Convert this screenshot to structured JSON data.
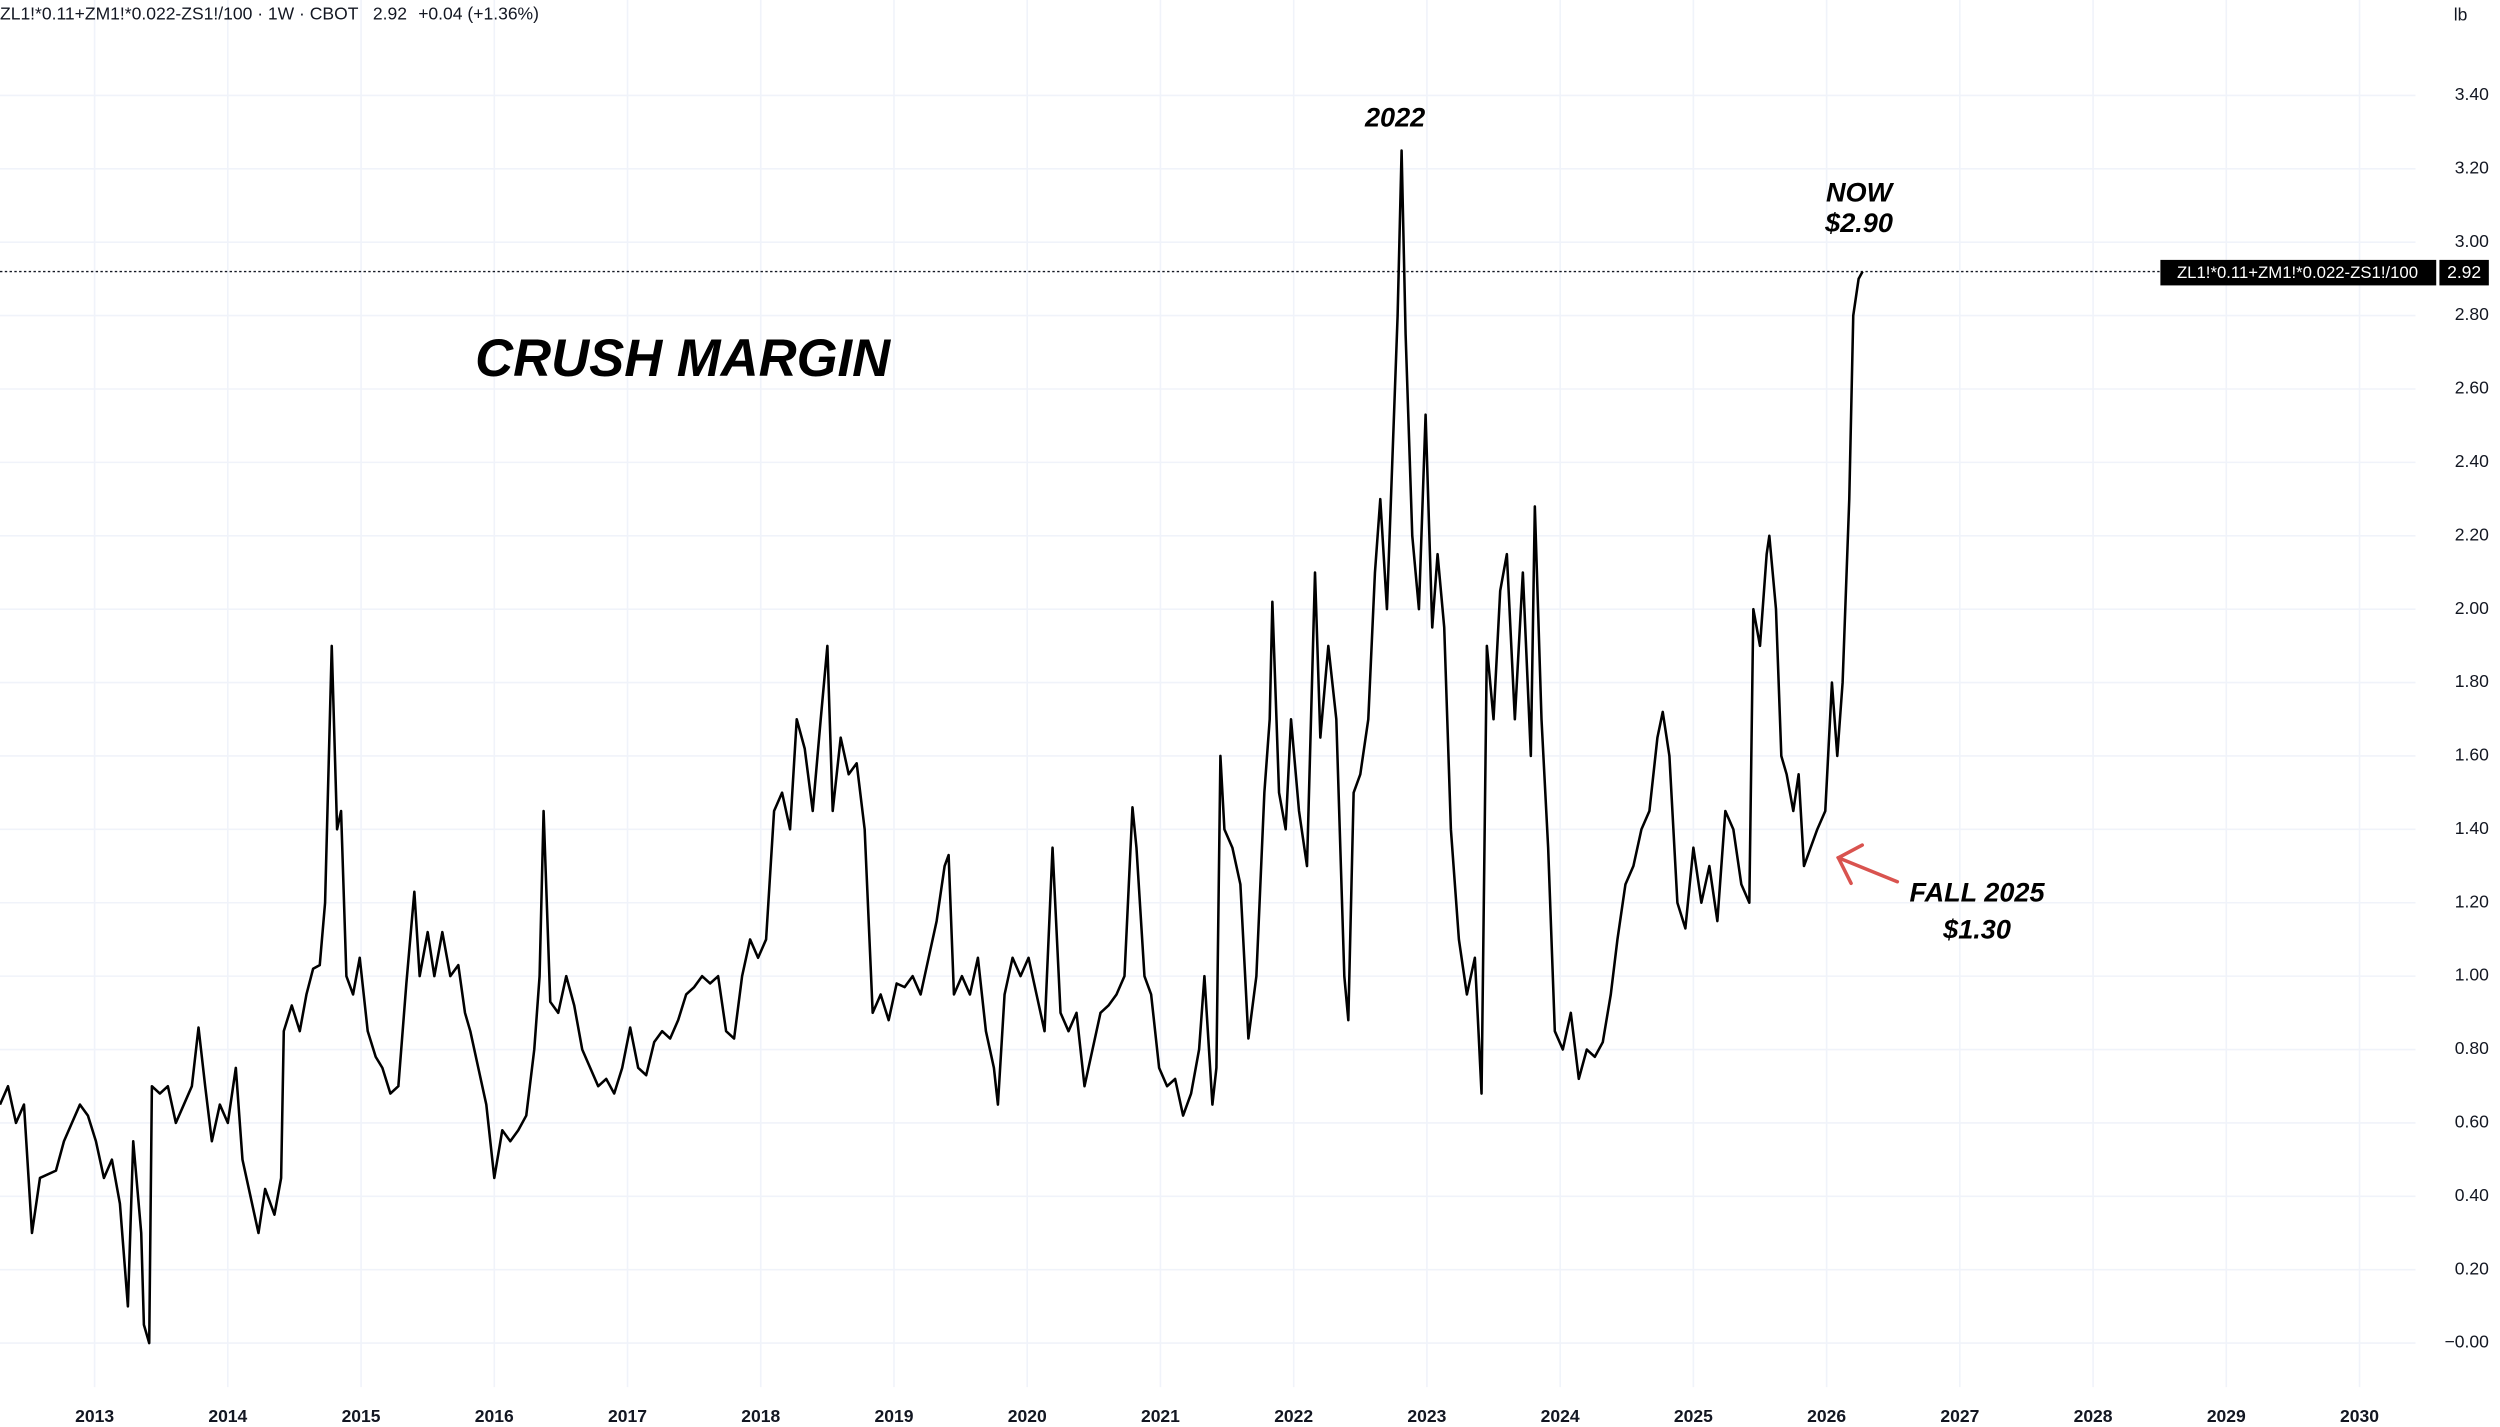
{
  "chart_data": {
    "type": "line",
    "legend_suffix": "· 1W · CBOT",
    "last": 2.92,
    "change": "+0.04",
    "change_pct": "(+1.36%)",
    "unit": "lb",
    "title": "CRUSH MARGIN",
    "annotations": [
      "2022",
      "NOW",
      "$2.90",
      "FALL 2025",
      "$1.30"
    ],
    "xlim": [
      2012.29,
      2030.42
    ],
    "xticks": [
      2013,
      2014,
      2015,
      2016,
      2017,
      2018,
      2019,
      2020,
      2021,
      2022,
      2023,
      2024,
      2025,
      2026,
      2027,
      2028,
      2029,
      2030
    ],
    "ylim": [
      -0.12,
      3.66
    ],
    "yticks": [
      {
        "value": 0,
        "label": "−0.00"
      },
      {
        "value": 0.2,
        "label": "0.20"
      },
      {
        "value": 0.4,
        "label": "0.40"
      },
      {
        "value": 0.6,
        "label": "0.60"
      },
      {
        "value": 0.8,
        "label": "0.80"
      },
      {
        "value": 1.0,
        "label": "1.00"
      },
      {
        "value": 1.2,
        "label": "1.20"
      },
      {
        "value": 1.4,
        "label": "1.40"
      },
      {
        "value": 1.6,
        "label": "1.60"
      },
      {
        "value": 1.8,
        "label": "1.80"
      },
      {
        "value": 2.0,
        "label": "2.00"
      },
      {
        "value": 2.2,
        "label": "2.20"
      },
      {
        "value": 2.4,
        "label": "2.40"
      },
      {
        "value": 2.6,
        "label": "2.60"
      },
      {
        "value": 2.8,
        "label": "2.80"
      },
      {
        "value": 3.0,
        "label": "3.00"
      },
      {
        "value": 3.2,
        "label": "3.20"
      },
      {
        "value": 3.4,
        "label": "3.40"
      }
    ],
    "grid": true,
    "x": [
      2012.29,
      2012.35,
      2012.41,
      2012.47,
      2012.53,
      2012.59,
      2012.71,
      2012.77,
      2012.83,
      2012.89,
      2012.95,
      2013.01,
      2013.07,
      2013.13,
      2013.19,
      2013.25,
      2013.29,
      2013.35,
      2013.37,
      2013.41,
      2013.43,
      2013.49,
      2013.55,
      2013.61,
      2013.67,
      2013.73,
      2013.78,
      2013.83,
      2013.88,
      2013.94,
      2014.0,
      2014.06,
      2014.11,
      2014.17,
      2014.23,
      2014.28,
      2014.35,
      2014.4,
      2014.42,
      2014.48,
      2014.54,
      2014.59,
      2014.64,
      2014.69,
      2014.73,
      2014.78,
      2014.82,
      2014.85,
      2014.89,
      2014.94,
      2014.99,
      2015.05,
      2015.11,
      2015.16,
      2015.22,
      2015.28,
      2015.34,
      2015.4,
      2015.44,
      2015.5,
      2015.55,
      2015.61,
      2015.67,
      2015.73,
      2015.78,
      2015.82,
      2015.88,
      2015.94,
      2016.0,
      2016.06,
      2016.12,
      2016.18,
      2016.24,
      2016.3,
      2016.34,
      2016.37,
      2016.42,
      2016.48,
      2016.54,
      2016.6,
      2016.66,
      2016.72,
      2016.78,
      2016.84,
      2016.9,
      2016.96,
      2017.02,
      2017.08,
      2017.14,
      2017.2,
      2017.26,
      2017.32,
      2017.38,
      2017.44,
      2017.5,
      2017.56,
      2017.62,
      2017.68,
      2017.74,
      2017.8,
      2017.86,
      2017.92,
      2017.98,
      2018.04,
      2018.1,
      2018.16,
      2018.22,
      2018.27,
      2018.33,
      2018.39,
      2018.45,
      2018.5,
      2018.54,
      2018.6,
      2018.66,
      2018.72,
      2018.78,
      2018.84,
      2018.9,
      2018.96,
      2019.02,
      2019.08,
      2019.14,
      2019.2,
      2019.26,
      2019.32,
      2019.38,
      2019.41,
      2019.45,
      2019.51,
      2019.57,
      2019.63,
      2019.69,
      2019.75,
      2019.78,
      2019.83,
      2019.89,
      2019.95,
      2020.01,
      2020.07,
      2020.13,
      2020.19,
      2020.25,
      2020.31,
      2020.37,
      2020.43,
      2020.49,
      2020.55,
      2020.61,
      2020.67,
      2020.73,
      2020.79,
      2020.82,
      2020.88,
      2020.93,
      2020.99,
      2021.05,
      2021.11,
      2021.17,
      2021.23,
      2021.29,
      2021.33,
      2021.39,
      2021.42,
      2021.45,
      2021.48,
      2021.54,
      2021.6,
      2021.66,
      2021.72,
      2021.78,
      2021.82,
      2021.84,
      2021.89,
      2021.94,
      2021.98,
      2022.04,
      2022.1,
      2022.16,
      2022.2,
      2022.26,
      2022.32,
      2022.38,
      2022.41,
      2022.45,
      2022.5,
      2022.56,
      2022.61,
      2022.65,
      2022.7,
      2022.75,
      2022.78,
      2022.81,
      2022.84,
      2022.89,
      2022.94,
      2022.99,
      2023.04,
      2023.08,
      2023.13,
      2023.18,
      2023.24,
      2023.3,
      2023.36,
      2023.41,
      2023.45,
      2023.5,
      2023.55,
      2023.6,
      2023.66,
      2023.72,
      2023.78,
      2023.81,
      2023.86,
      2023.91,
      2023.96,
      2024.02,
      2024.08,
      2024.14,
      2024.2,
      2024.26,
      2024.32,
      2024.38,
      2024.43,
      2024.49,
      2024.55,
      2024.61,
      2024.67,
      2024.73,
      2024.77,
      2024.82,
      2024.88,
      2024.94,
      2025.0,
      2025.06,
      2025.12,
      2025.18,
      2025.24,
      2025.3,
      2025.36,
      2025.42,
      2025.45,
      2025.5,
      2025.55,
      2025.57,
      2025.62,
      2025.66,
      2025.7,
      2025.75,
      2025.79,
      2025.83,
      2025.88,
      2025.93,
      2025.99,
      2026.04,
      2026.08,
      2026.12,
      2026.17,
      2026.2,
      2026.24,
      2026.27
    ],
    "series": [
      {
        "name": "ZL1!*0.11+ZM1!*0.022-ZS1!/100",
        "color": "#000000",
        "values": [
          0.65,
          0.7,
          0.6,
          0.65,
          0.3,
          0.45,
          0.47,
          0.55,
          0.6,
          0.65,
          0.62,
          0.55,
          0.45,
          0.5,
          0.38,
          0.1,
          0.55,
          0.3,
          0.05,
          0.0,
          0.7,
          0.68,
          0.7,
          0.6,
          0.65,
          0.7,
          0.86,
          0.7,
          0.55,
          0.65,
          0.6,
          0.75,
          0.5,
          0.4,
          0.3,
          0.42,
          0.35,
          0.45,
          0.85,
          0.92,
          0.85,
          0.95,
          1.02,
          1.03,
          1.2,
          1.9,
          1.4,
          1.45,
          1.0,
          0.95,
          1.05,
          0.85,
          0.78,
          0.75,
          0.68,
          0.7,
          0.98,
          1.23,
          1.0,
          1.12,
          1.0,
          1.12,
          1.0,
          1.03,
          0.9,
          0.85,
          0.75,
          0.65,
          0.45,
          0.58,
          0.55,
          0.58,
          0.62,
          0.8,
          1.0,
          1.45,
          0.93,
          0.9,
          1.0,
          0.92,
          0.8,
          0.75,
          0.7,
          0.72,
          0.68,
          0.75,
          0.86,
          0.75,
          0.73,
          0.82,
          0.85,
          0.83,
          0.88,
          0.95,
          0.97,
          1.0,
          0.98,
          1.0,
          0.85,
          0.83,
          1.0,
          1.1,
          1.05,
          1.1,
          1.45,
          1.5,
          1.4,
          1.7,
          1.62,
          1.45,
          1.7,
          1.9,
          1.45,
          1.65,
          1.55,
          1.58,
          1.4,
          0.9,
          0.95,
          0.88,
          0.98,
          0.97,
          1.0,
          0.95,
          1.05,
          1.15,
          1.3,
          1.33,
          0.95,
          1.0,
          0.95,
          1.05,
          0.85,
          0.75,
          0.65,
          0.95,
          1.05,
          1.0,
          1.05,
          0.95,
          0.85,
          1.35,
          0.9,
          0.85,
          0.9,
          0.7,
          0.8,
          0.9,
          0.92,
          0.95,
          1.0,
          1.46,
          1.35,
          1.0,
          0.95,
          0.75,
          0.7,
          0.72,
          0.62,
          0.68,
          0.8,
          1.0,
          0.65,
          0.75,
          1.6,
          1.4,
          1.35,
          1.25,
          0.83,
          1.0,
          1.5,
          1.7,
          2.02,
          1.5,
          1.4,
          1.7,
          1.45,
          1.3,
          2.1,
          1.65,
          1.9,
          1.7,
          1.0,
          0.88,
          1.5,
          1.55,
          1.7,
          2.1,
          2.3,
          2.0,
          2.5,
          2.8,
          3.25,
          2.75,
          2.2,
          2.0,
          2.53,
          1.95,
          2.15,
          1.95,
          1.4,
          1.1,
          0.95,
          1.05,
          0.68,
          1.9,
          1.7,
          2.05,
          2.15,
          1.7,
          2.1,
          1.6,
          2.28,
          1.7,
          1.35,
          0.85,
          0.8,
          0.9,
          0.72,
          0.8,
          0.78,
          0.82,
          0.95,
          1.1,
          1.25,
          1.3,
          1.4,
          1.45,
          1.65,
          1.72,
          1.6,
          1.2,
          1.13,
          1.35,
          1.2,
          1.3,
          1.15,
          1.45,
          1.4,
          1.25,
          1.2,
          2.0,
          1.9,
          2.15,
          2.2,
          2.0,
          1.6,
          1.55,
          1.45,
          1.55,
          1.3,
          1.35,
          1.4,
          1.45,
          1.8,
          1.6,
          1.8,
          2.3,
          2.8,
          2.9,
          2.92
        ]
      }
    ]
  }
}
